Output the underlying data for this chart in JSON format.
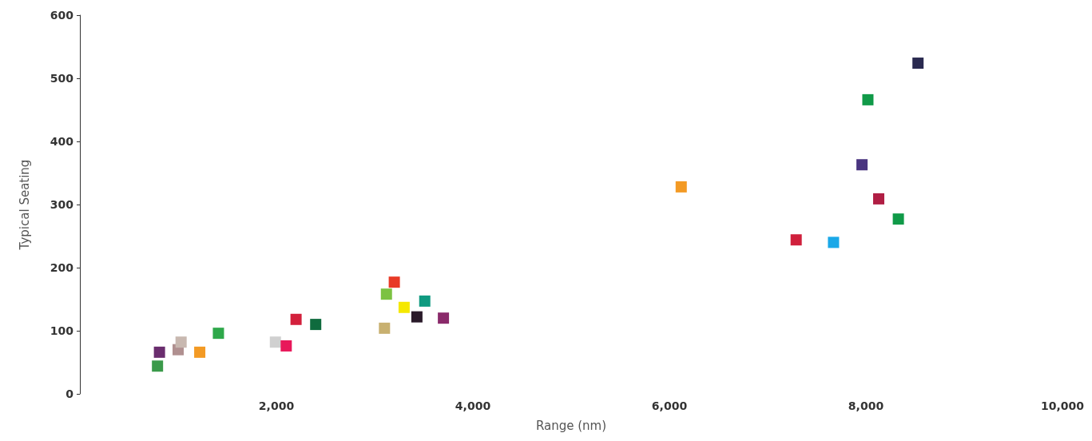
{
  "chart_data": {
    "type": "scatter",
    "xlabel": "Range (nm)",
    "ylabel": "Typical Seating",
    "marker": "square",
    "grid": false,
    "xlim": [
      0,
      10000
    ],
    "xticks": [
      {
        "value": 0,
        "label": null
      },
      {
        "value": 2000,
        "label": "2,000"
      },
      {
        "value": 4000,
        "label": "4,000"
      },
      {
        "value": 6000,
        "label": "6,000"
      },
      {
        "value": 8000,
        "label": "8,000"
      },
      {
        "value": 10000,
        "label": "10,000"
      }
    ],
    "ylim": [
      0,
      600
    ],
    "yticks": [
      0,
      100,
      200,
      300,
      400,
      500,
      600
    ],
    "x": [
      810,
      790,
      1000,
      1030,
      1220,
      1410,
      1990,
      2100,
      2200,
      2400,
      3100,
      3120,
      3200,
      3300,
      3430,
      3510,
      3700,
      6120,
      7290,
      7670,
      7960,
      8020,
      8130,
      8330,
      8530
    ],
    "values": [
      66,
      44,
      70,
      82,
      66,
      96,
      82,
      76,
      118,
      110,
      104,
      158,
      177,
      137,
      122,
      147,
      120,
      328,
      244,
      240,
      363,
      466,
      309,
      277,
      524
    ],
    "colors": [
      "#6a2d6e",
      "#3a9a4a",
      "#b09090",
      "#c8b8b0",
      "#f39a24",
      "#2ea84a",
      "#d0d0d0",
      "#e8185a",
      "#d3203c",
      "#0f6b3e",
      "#c8b070",
      "#7cc242",
      "#e83a26",
      "#f5e800",
      "#2a1a2a",
      "#0f9a80",
      "#8a2a6a",
      "#f39a24",
      "#d0203c",
      "#1aa8e8",
      "#4a3580",
      "#109a48",
      "#b01e44",
      "#109a48",
      "#2a2a50"
    ]
  }
}
